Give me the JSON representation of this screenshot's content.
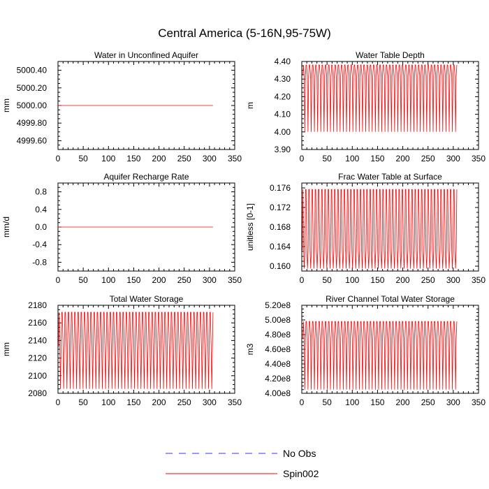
{
  "title": "Central America (5-16N,95-75W)",
  "colors": {
    "spin": "#ff0000",
    "obs": "#3333ff",
    "axis": "#000000"
  },
  "legend": [
    {
      "label": "No Obs",
      "style": "dashed"
    },
    {
      "label": "Spin002",
      "style": "solid"
    }
  ],
  "chart_data": [
    {
      "type": "line",
      "title": "Water in Unconfined Aquifer",
      "ylabel": "mm",
      "xlim": [
        0,
        350
      ],
      "xticks": [
        0,
        50,
        100,
        150,
        200,
        250,
        300,
        350
      ],
      "xtick_labels": [
        "0",
        "50",
        "100",
        "150",
        "200",
        "250",
        "300",
        "350"
      ],
      "ylim": [
        4999.5,
        5000.5
      ],
      "yticks": [
        4999.6,
        4999.8,
        5000.0,
        5000.2,
        5000.4
      ],
      "ytick_labels": [
        "4999.60",
        "4999.80",
        "5000.00",
        "5000.20",
        "5000.40"
      ],
      "series": [
        {
          "name": "Spin002",
          "kind": "constant",
          "x_end": 307,
          "value": 5000.0
        }
      ]
    },
    {
      "type": "line",
      "title": "Water Table Depth",
      "ylabel": "m",
      "xlim": [
        0,
        350
      ],
      "xticks": [
        0,
        50,
        100,
        150,
        200,
        250,
        300,
        350
      ],
      "xtick_labels": [
        "0",
        "50",
        "100",
        "150",
        "200",
        "250",
        "300",
        "350"
      ],
      "ylim": [
        3.9,
        4.4
      ],
      "yticks": [
        3.9,
        4.0,
        4.1,
        4.2,
        4.3,
        4.4
      ],
      "ytick_labels": [
        "3.90",
        "4.00",
        "4.10",
        "4.20",
        "4.30",
        "4.40"
      ],
      "series": [
        {
          "name": "Spin002",
          "kind": "seasonal",
          "x_start": 2,
          "x_end": 307,
          "period": 6.4,
          "min": 4.0,
          "max": 4.38,
          "mid": 4.32
        }
      ]
    },
    {
      "type": "line",
      "title": "Aquifer Recharge Rate",
      "ylabel": "mm/d",
      "xlim": [
        0,
        350
      ],
      "xticks": [
        0,
        50,
        100,
        150,
        200,
        250,
        300,
        350
      ],
      "xtick_labels": [
        "0",
        "50",
        "100",
        "150",
        "200",
        "250",
        "300",
        "350"
      ],
      "ylim": [
        -1.0,
        1.0
      ],
      "yticks": [
        -0.8,
        -0.4,
        0.0,
        0.4,
        0.8
      ],
      "ytick_labels": [
        "-0.8",
        "-0.4",
        "0.0",
        "0.4",
        "0.8"
      ],
      "series": [
        {
          "name": "Spin002",
          "kind": "constant",
          "x_end": 307,
          "value": 0.0
        }
      ]
    },
    {
      "type": "line",
      "title": "Frac Water Table at Surface",
      "ylabel": "unitless [0-1]",
      "xlim": [
        0,
        350
      ],
      "xticks": [
        0,
        50,
        100,
        150,
        200,
        250,
        300,
        350
      ],
      "xtick_labels": [
        "0",
        "50",
        "100",
        "150",
        "200",
        "250",
        "300",
        "350"
      ],
      "ylim": [
        0.159,
        0.177
      ],
      "yticks": [
        0.16,
        0.164,
        0.168,
        0.172,
        0.176
      ],
      "ytick_labels": [
        "0.160",
        "0.164",
        "0.168",
        "0.172",
        "0.176"
      ],
      "series": [
        {
          "name": "Spin002",
          "kind": "seasonal",
          "x_start": 1,
          "x_end": 307,
          "period": 6.4,
          "min": 0.1595,
          "max": 0.1757,
          "mid": 0.1632
        }
      ]
    },
    {
      "type": "line",
      "title": "Total Water Storage",
      "ylabel": "mm",
      "xlim": [
        0,
        350
      ],
      "xticks": [
        0,
        50,
        100,
        150,
        200,
        250,
        300,
        350
      ],
      "xtick_labels": [
        "0",
        "50",
        "100",
        "150",
        "200",
        "250",
        "300",
        "350"
      ],
      "ylim": [
        2080,
        2180
      ],
      "yticks": [
        2080,
        2100,
        2120,
        2140,
        2160,
        2180
      ],
      "ytick_labels": [
        "2080",
        "2100",
        "2120",
        "2140",
        "2160",
        "2180"
      ],
      "series": [
        {
          "name": "Spin002",
          "kind": "seasonal",
          "x_start": 1,
          "x_end": 307,
          "period": 6.4,
          "min": 2085,
          "max": 2172,
          "mid": 2133
        }
      ]
    },
    {
      "type": "line",
      "title": "River Channel Total Water Storage",
      "ylabel": "m3",
      "xlim": [
        0,
        350
      ],
      "xticks": [
        0,
        50,
        100,
        150,
        200,
        250,
        300,
        350
      ],
      "xtick_labels": [
        "0",
        "50",
        "100",
        "150",
        "200",
        "250",
        "300",
        "350"
      ],
      "ylim": [
        400000000,
        520000000
      ],
      "yticks": [
        400000000,
        420000000,
        440000000,
        460000000,
        480000000,
        500000000,
        520000000
      ],
      "ytick_labels": [
        "4.00e8",
        "4.20e8",
        "4.40e8",
        "4.60e8",
        "4.80e8",
        "5.00e8",
        "5.20e8"
      ],
      "series": [
        {
          "name": "Spin002",
          "kind": "seasonal",
          "x_start": 2,
          "x_end": 307,
          "period": 6.4,
          "min": 405000000,
          "max": 498000000,
          "mid": 475000000
        }
      ]
    }
  ]
}
